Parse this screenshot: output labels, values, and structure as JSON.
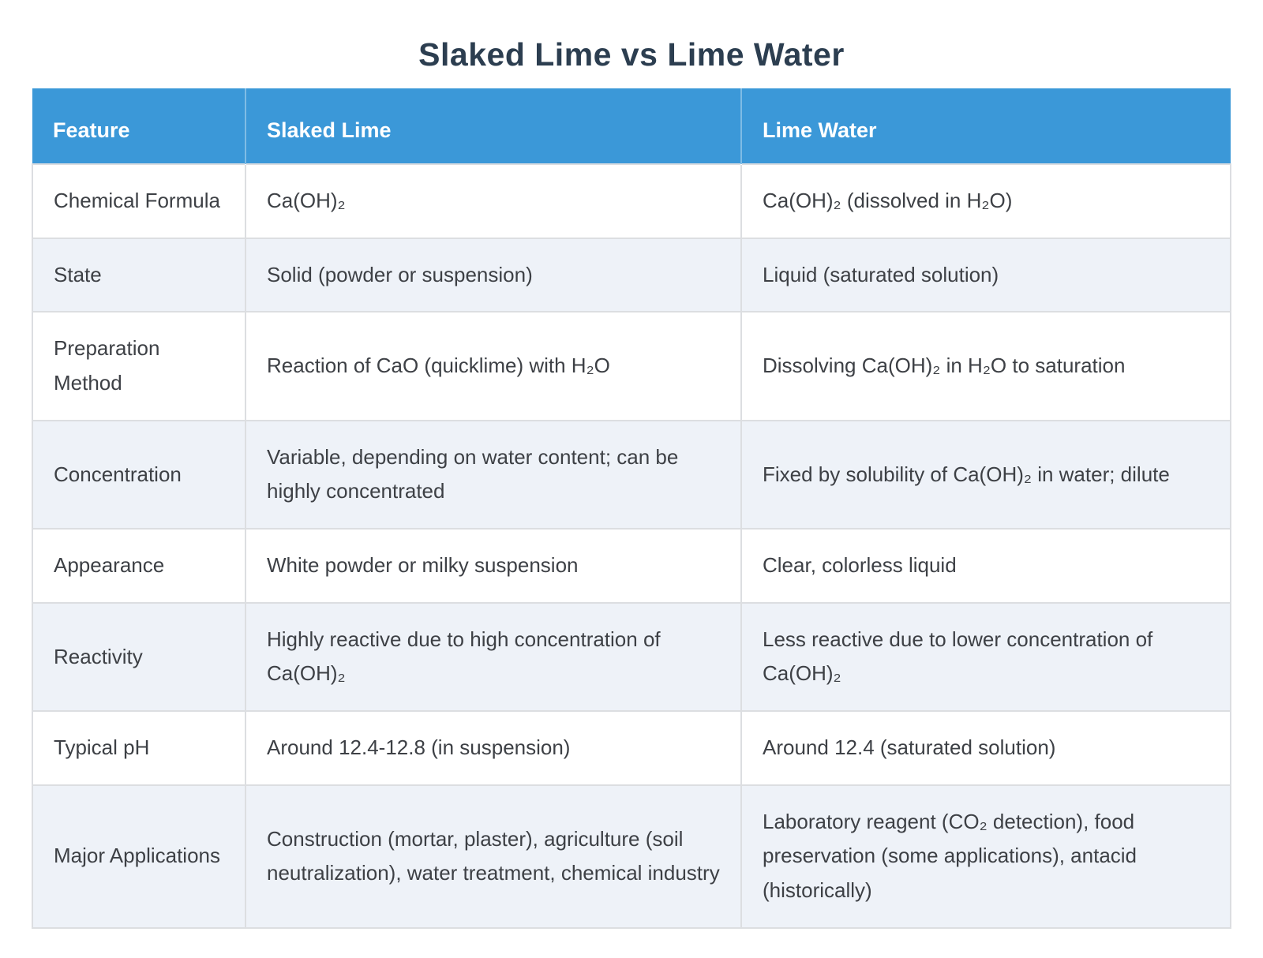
{
  "title": "Slaked Lime vs Lime Water",
  "colors": {
    "header_bg": "#3b98d8",
    "header_text": "#ffffff",
    "alt_row_bg": "#eef2f8",
    "row_bg": "#ffffff",
    "border": "#dcdee1",
    "title_text": "#2c3e50",
    "body_text": "#3d4045"
  },
  "table": {
    "columns": [
      "Feature",
      "Slaked Lime",
      "Lime Water"
    ],
    "rows": [
      {
        "cells": [
          "Chemical Formula",
          "Ca(OH)₂",
          "Ca(OH)₂ (dissolved in H₂O)"
        ]
      },
      {
        "cells": [
          "State",
          "Solid (powder or suspension)",
          "Liquid (saturated solution)"
        ]
      },
      {
        "cells": [
          "Preparation Method",
          "Reaction of CaO (quicklime) with H₂O",
          "Dissolving Ca(OH)₂ in H₂O to saturation"
        ]
      },
      {
        "cells": [
          "Concentration",
          "Variable, depending on water content; can be highly concentrated",
          "Fixed by solubility of Ca(OH)₂ in water; dilute"
        ]
      },
      {
        "cells": [
          "Appearance",
          "White powder or milky suspension",
          "Clear, colorless liquid"
        ]
      },
      {
        "cells": [
          "Reactivity",
          "Highly reactive due to high concentration of Ca(OH)₂",
          "Less reactive due to lower concentration of Ca(OH)₂"
        ]
      },
      {
        "cells": [
          "Typical pH",
          "Around 12.4-12.8 (in suspension)",
          "Around 12.4 (saturated solution)"
        ]
      },
      {
        "cells": [
          "Major Applications",
          "Construction (mortar, plaster), agriculture (soil neutralization), water treatment, chemical industry",
          "Laboratory reagent (CO₂ detection), food preservation (some applications), antacid (historically)"
        ]
      }
    ]
  }
}
